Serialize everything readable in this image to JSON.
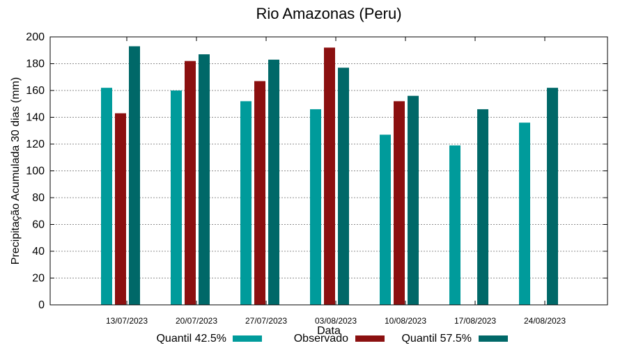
{
  "chart_data": {
    "type": "bar",
    "title": "Rio Amazonas (Peru)",
    "xlabel": "Data",
    "ylabel": "Precipitação Acumulada 30 dias (mm)",
    "ylim": [
      0,
      200
    ],
    "yticks": [
      0,
      20,
      40,
      60,
      80,
      100,
      120,
      140,
      160,
      180,
      200
    ],
    "grid": true,
    "legend_position": "bottom",
    "categories": [
      "13/07/2023",
      "20/07/2023",
      "27/07/2023",
      "03/08/2023",
      "10/08/2023",
      "17/08/2023",
      "24/08/2023"
    ],
    "series": [
      {
        "name": "Quantil 42.5%",
        "color": "#009b9b",
        "values": [
          162,
          160,
          152,
          146,
          127,
          119,
          136
        ]
      },
      {
        "name": "Observado",
        "color": "#8b1010",
        "values": [
          143,
          182,
          167,
          192,
          152,
          null,
          null
        ]
      },
      {
        "name": "Quantil 57.5%",
        "color": "#006868",
        "values": [
          193,
          187,
          183,
          177,
          156,
          146,
          162
        ]
      }
    ]
  }
}
